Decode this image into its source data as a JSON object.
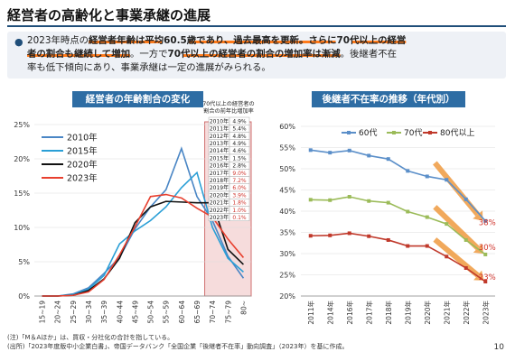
{
  "title": "経営者の高齢化と事業承継の進展",
  "summary": {
    "bullet": "●",
    "lines": [
      {
        "parts": [
          {
            "t": "2023年時点の",
            "b": false
          },
          {
            "t": "経営者年齢は平均60.5歳であり、過去最高を更新。さらに70代以上の経営",
            "b": true
          }
        ]
      },
      {
        "parts": [
          {
            "t": "者の割合も継続して増加",
            "b": true
          },
          {
            "t": "。一方で",
            "b": false
          },
          {
            "t": "70代以上の経営者の割合の増加率は漸減",
            "b": true
          },
          {
            "t": "。後継者不在",
            "b": false
          }
        ]
      },
      {
        "parts": [
          {
            "t": "率も低下傾向にあり、事業承継は一定の進展がみられる。",
            "b": false
          }
        ]
      }
    ]
  },
  "colors": {
    "banner": "#2e6da4",
    "series_2010": "#4a86c5",
    "series_2015": "#2a9fd6",
    "series_2020": "#111111",
    "series_2023": "#e8402f",
    "series_60s": "#5b8fc9",
    "series_70s": "#9bbb59",
    "series_80s": "#c0392b",
    "arrow": "#f0a04b",
    "highlight_box": "#f6dcdc",
    "highlight_border": "#d07070"
  },
  "chart_data": [
    {
      "type": "line",
      "title": "経営者の年齢割合の変化",
      "x": [
        "15~19",
        "20~24",
        "25~29",
        "30~34",
        "35~39",
        "40~44",
        "45~49",
        "50~54",
        "55~59",
        "60~64",
        "65~69",
        "70~74",
        "75~79",
        "80~"
      ],
      "ylim": [
        0,
        25
      ],
      "yticks": [
        "0%",
        "5%",
        "10%",
        "15%",
        "20%",
        "25%"
      ],
      "legend_position": "top-left",
      "series": [
        {
          "name": "2010年",
          "values": [
            0.0,
            0.0,
            0.3,
            1.2,
            3.3,
            5.6,
            9.8,
            13.0,
            15.5,
            21.5,
            14.5,
            11.0,
            5.8,
            2.6
          ]
        },
        {
          "name": "2015年",
          "values": [
            0.0,
            0.0,
            0.2,
            1.0,
            3.0,
            7.6,
            9.5,
            11.0,
            13.0,
            15.8,
            18.0,
            10.0,
            5.5,
            3.5
          ]
        },
        {
          "name": "2020年",
          "values": [
            0.0,
            0.0,
            0.1,
            0.8,
            2.5,
            5.5,
            10.7,
            13.0,
            13.8,
            13.7,
            13.6,
            13.6,
            6.8,
            4.6
          ]
        },
        {
          "name": "2023年",
          "values": [
            0.0,
            0.0,
            0.1,
            0.6,
            2.4,
            6.0,
            10.1,
            14.5,
            14.8,
            14.3,
            12.8,
            11.5,
            8.3,
            5.6
          ]
        }
      ],
      "highlight_range": [
        "70~74",
        "80~"
      ],
      "inset_table": {
        "title": "70代以上の経営者の割合の前年比増加率",
        "rows": [
          {
            "year": "2010年",
            "value": "4.9%"
          },
          {
            "year": "2011年",
            "value": "5.4%"
          },
          {
            "year": "2012年",
            "value": "4.8%"
          },
          {
            "year": "2013年",
            "value": "4.9%"
          },
          {
            "year": "2014年",
            "value": "4.6%"
          },
          {
            "year": "2015年",
            "value": "1.5%"
          },
          {
            "year": "2016年",
            "value": "2.8%"
          },
          {
            "year": "2017年",
            "value": "9.0%"
          },
          {
            "year": "2018年",
            "value": "7.2%"
          },
          {
            "year": "2019年",
            "value": "6.0%"
          },
          {
            "year": "2020年",
            "value": "3.9%"
          },
          {
            "year": "2021年",
            "value": "1.8%"
          },
          {
            "year": "2022年",
            "value": "1.0%"
          },
          {
            "year": "2023年",
            "value": "0.1%"
          }
        ]
      }
    },
    {
      "type": "line",
      "title": "後継者不在率の推移（年代別）",
      "x": [
        "2011年",
        "2014年",
        "2016年",
        "2017年",
        "2018年",
        "2019年",
        "2020年",
        "2021年",
        "2022年",
        "2023年"
      ],
      "ylim": [
        20,
        60
      ],
      "yticks": [
        "20%",
        "25%",
        "30%",
        "35%",
        "40%",
        "45%",
        "50%",
        "55%",
        "60%"
      ],
      "legend_position": "top",
      "series": [
        {
          "name": "60代",
          "values": [
            54.4,
            53.8,
            54.3,
            53.1,
            52.3,
            49.5,
            48.2,
            47.4,
            42.8,
            37.7
          ]
        },
        {
          "name": "70代",
          "values": [
            42.7,
            42.6,
            43.4,
            42.4,
            42.0,
            39.9,
            38.6,
            37.0,
            33.2,
            29.8
          ]
        },
        {
          "name": "80代以上",
          "values": [
            34.2,
            34.3,
            34.8,
            34.1,
            33.2,
            31.8,
            31.8,
            29.3,
            26.6,
            23.4
          ]
        }
      ],
      "end_labels": [
        "38%",
        "30%",
        "23%"
      ]
    }
  ],
  "notes": [
    "(注)「M＆Aほか」は、買収・分社化の合計を指している。",
    "(出所)「2023年度版中小企業白書」、帝国データバンク「全国企業「後継者不在率」動向調査」（2023年）を基に作成。"
  ],
  "page_number": "10"
}
